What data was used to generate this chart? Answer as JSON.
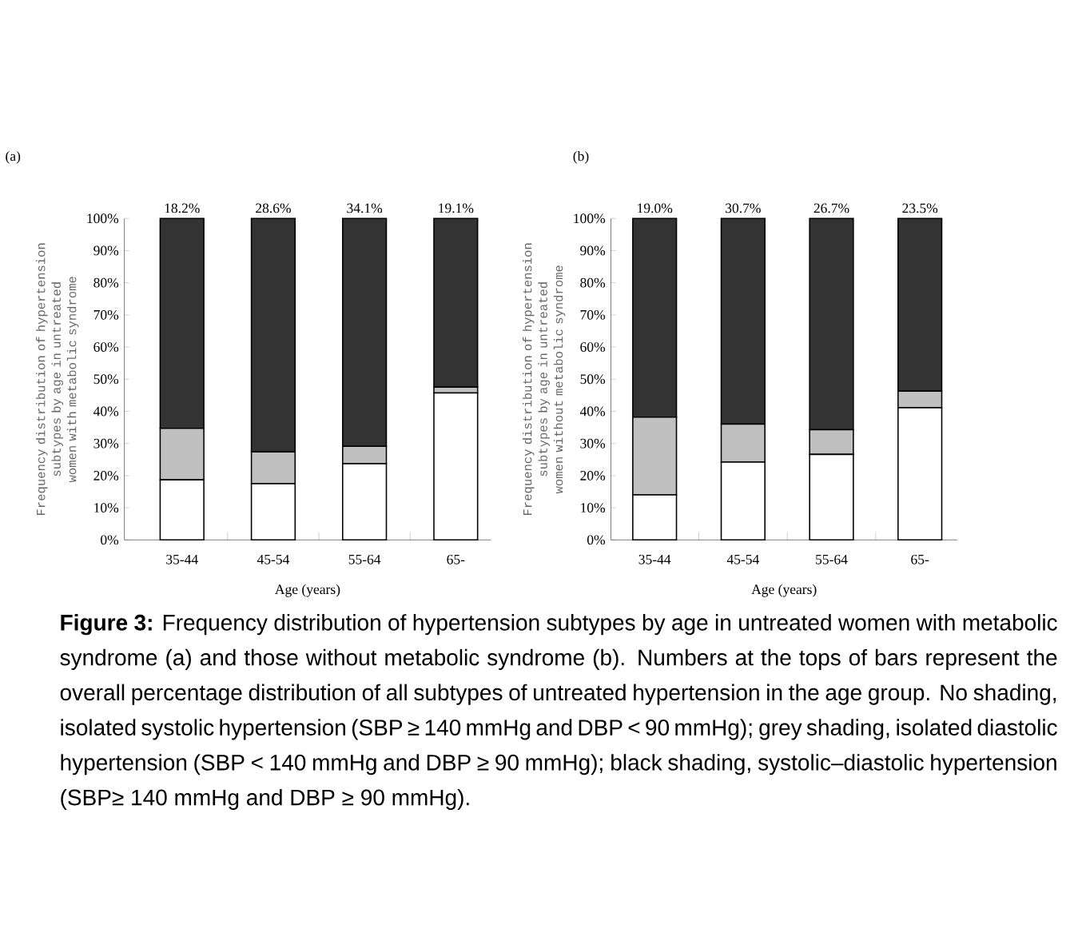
{
  "chart_data": [
    {
      "type": "bar",
      "title": "(a)",
      "xlabel": "Age (years)",
      "ylabel": "Frequency distribution of hypertension subtypes by age in untreated women with metabolic syndrome",
      "stacked": true,
      "categories": [
        "35-44",
        "45-54",
        "55-64",
        "65-"
      ],
      "series": [
        {
          "color": "#ffffff",
          "values": [
            18.7,
            17.5,
            23.7,
            45.7
          ]
        },
        {
          "color": "#c0c0c0",
          "values": [
            16.0,
            9.9,
            5.4,
            1.8
          ]
        },
        {
          "color": "#333333",
          "values": [
            65.3,
            72.6,
            70.9,
            52.5
          ]
        }
      ],
      "ylim": [
        0,
        100
      ],
      "yticks": [
        {
          "value": 0,
          "label": "0%"
        },
        {
          "value": 10,
          "label": "10%"
        },
        {
          "value": 20,
          "label": "20%"
        },
        {
          "value": 30,
          "label": "30%"
        },
        {
          "value": 40,
          "label": "40%"
        },
        {
          "value": 50,
          "label": "50%"
        },
        {
          "value": 60,
          "label": "60%"
        },
        {
          "value": 70,
          "label": "70%"
        },
        {
          "value": 80,
          "label": "80%"
        },
        {
          "value": 90,
          "label": "90%"
        },
        {
          "value": 100,
          "label": "100%"
        }
      ],
      "annotations": [
        {
          "text": "18.2%",
          "x": "35-44",
          "y": 100
        },
        {
          "text": "28.6%",
          "x": "45-54",
          "y": 100
        },
        {
          "text": "34.1%",
          "x": "55-64",
          "y": 100
        },
        {
          "text": "19.1%",
          "x": "65-",
          "y": 100
        },
        "**Figure 3:** Frequency distribution of hypertension subtypes by age in untreated women with metabolic syndrome (a) and those without metabolic syndrome (b). Numbers at the tops of bars represent the overall percentage distribution of all subtypes of untreated hypertension in the age group. No shading, isolated systolic hypertension (SBP ≥ 140 mmHg and DBP < 90 mmHg); grey shading, isolated diastolic hypertension (SBP < 140 mmHg and DBP ≥ 90 mmHg); black shading, systolic–diastolic hypertension (SBP≥ 140 mmHg and DBP ≥ 90 mmHg)."
      ]
    },
    {
      "type": "bar",
      "title": "(b)",
      "xlabel": "Age (years)",
      "ylabel": "Frequency distribution of hypertension subtypes by age in untreated women without metabolic syndrome",
      "stacked": true,
      "categories": [
        "35-44",
        "45-54",
        "55-64",
        "65-"
      ],
      "series": [
        {
          "color": "#ffffff",
          "values": [
            14.0,
            24.2,
            26.6,
            41.1
          ]
        },
        {
          "color": "#c0c0c0",
          "values": [
            24.2,
            11.8,
            7.7,
            5.2
          ]
        },
        {
          "color": "#333333",
          "values": [
            61.8,
            64.0,
            65.7,
            53.7
          ]
        }
      ],
      "ylim": [
        0,
        100
      ],
      "yticks": [
        {
          "value": 0,
          "label": "0%"
        },
        {
          "value": 10,
          "label": "10%"
        },
        {
          "value": 20,
          "label": "20%"
        },
        {
          "value": 30,
          "label": "30%"
        },
        {
          "value": 40,
          "label": "40%"
        },
        {
          "value": 50,
          "label": "50%"
        },
        {
          "value": 60,
          "label": "60%"
        },
        {
          "value": 70,
          "label": "70%"
        },
        {
          "value": 80,
          "label": "80%"
        },
        {
          "value": 90,
          "label": "90%"
        },
        {
          "value": 100,
          "label": "100%"
        }
      ],
      "annotations": [
        {
          "text": "19.0%",
          "x": "35-44",
          "y": 100
        },
        {
          "text": "30.7%",
          "x": "45-54",
          "y": 100
        },
        {
          "text": "26.7%",
          "x": "55-64",
          "y": 100
        },
        {
          "text": "23.5%",
          "x": "65-",
          "y": 100
        }
      ]
    }
  ]
}
